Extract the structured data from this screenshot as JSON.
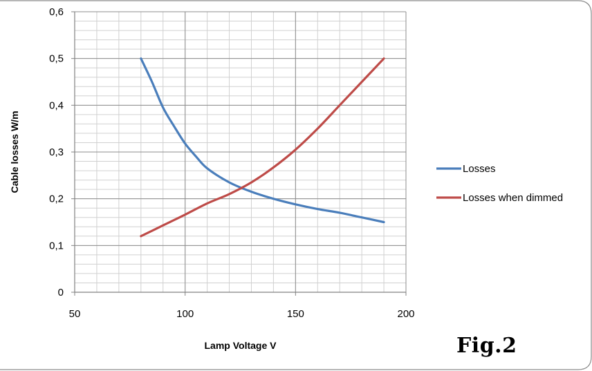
{
  "figure_label": "Fig.2",
  "chart_data": {
    "type": "line",
    "xlabel": "Lamp Voltage V",
    "ylabel": "Cable losses W/m",
    "xlim": [
      50,
      200
    ],
    "ylim": [
      0,
      0.6
    ],
    "x_ticks": [
      50,
      100,
      150,
      200
    ],
    "y_ticks": [
      0,
      0.1,
      0.2,
      0.3,
      0.4,
      0.5,
      0.6
    ],
    "x_tick_labels": [
      "50",
      "100",
      "150",
      "200"
    ],
    "y_tick_labels": [
      "0",
      "0,1",
      "0,2",
      "0,3",
      "0,4",
      "0,5",
      "0,6"
    ],
    "grid": "major and minor",
    "legend_position": "right",
    "series": [
      {
        "name": "Losses",
        "color": "#4a7ebb",
        "x": [
          80,
          85,
          90,
          95,
          100,
          105,
          110,
          120,
          130,
          140,
          150,
          160,
          170,
          180,
          190
        ],
        "y": [
          0.5,
          0.45,
          0.395,
          0.355,
          0.318,
          0.29,
          0.265,
          0.235,
          0.215,
          0.2,
          0.188,
          0.178,
          0.17,
          0.16,
          0.15
        ]
      },
      {
        "name": "Losses when dimmed",
        "color": "#be4b48",
        "x": [
          80,
          90,
          100,
          110,
          120,
          130,
          140,
          150,
          160,
          170,
          180,
          190
        ],
        "y": [
          0.12,
          0.143,
          0.166,
          0.19,
          0.21,
          0.235,
          0.267,
          0.305,
          0.35,
          0.4,
          0.45,
          0.5
        ]
      }
    ]
  }
}
